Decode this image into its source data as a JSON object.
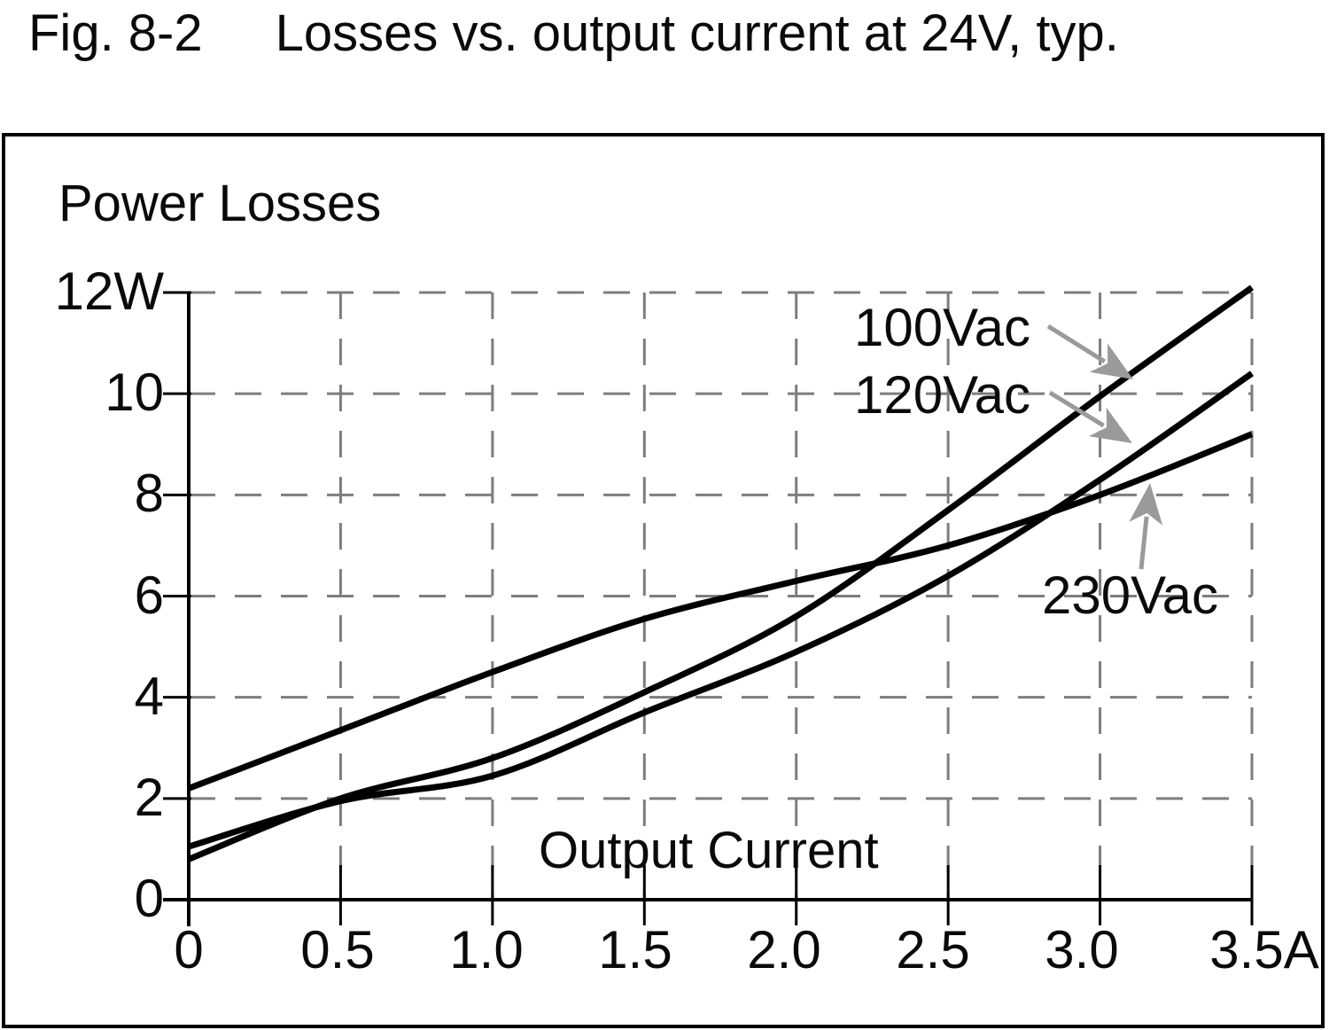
{
  "page_title": {
    "fig_label": "Fig. 8-2",
    "title": "Losses vs. output current at 24V, typ."
  },
  "chart_data": {
    "type": "line",
    "fig_number": "Fig. 8-2",
    "title": "Losses vs. output current at 24V, typ.",
    "xlabel": "Output Current",
    "ylabel": "Power Losses",
    "x_unit": "A",
    "y_unit": "W",
    "xlim": [
      0,
      3.5
    ],
    "ylim": [
      0,
      12
    ],
    "grid": "dashed",
    "legend_position": "inline-annotations",
    "x": [
      0,
      0.5,
      1.0,
      1.5,
      2.0,
      2.5,
      3.0,
      3.5
    ],
    "x_tick_labels": [
      "0",
      "0.5",
      "1.0",
      "1.5",
      "2.0",
      "2.5",
      "3.0",
      "3.5A"
    ],
    "y_ticks": [
      0,
      2,
      4,
      6,
      8,
      10,
      12
    ],
    "y_tick_labels": [
      "0",
      "2",
      "4",
      "6",
      "8",
      "10",
      "12W"
    ],
    "series": [
      {
        "id": "100",
        "name": "100Vac",
        "values": [
          0.8,
          2.0,
          2.8,
          4.1,
          5.6,
          7.7,
          9.95,
          12.1
        ]
      },
      {
        "id": "120",
        "name": "120Vac",
        "values": [
          1.05,
          1.95,
          2.45,
          3.7,
          4.9,
          6.4,
          8.3,
          10.4
        ]
      },
      {
        "id": "230",
        "name": "230Vac",
        "values": [
          2.2,
          3.35,
          4.5,
          5.55,
          6.3,
          7.0,
          8.0,
          9.2
        ]
      }
    ],
    "annotations": [
      {
        "id": "100",
        "label": "100Vac"
      },
      {
        "id": "120",
        "label": "120Vac"
      },
      {
        "id": "230",
        "label": "230Vac"
      }
    ],
    "colors": {
      "curve": "#000000",
      "grid": "#7d7d7d",
      "arrow": "#9a9a9a",
      "text": "#0a0a0a",
      "background": "#ffffff"
    }
  }
}
